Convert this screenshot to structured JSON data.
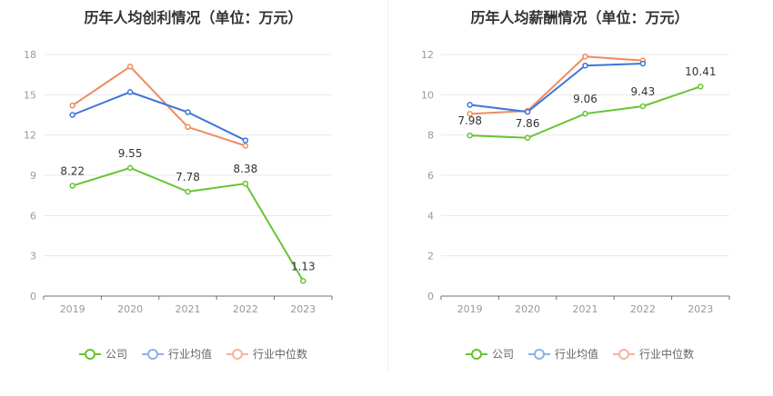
{
  "chart_data": [
    {
      "type": "line",
      "title": "历年人均创利情况（单位：万元）",
      "categories": [
        "2019",
        "2020",
        "2021",
        "2022",
        "2023"
      ],
      "yticks": [
        0,
        3,
        6,
        9,
        12,
        15,
        18
      ],
      "ylim": [
        0,
        18
      ],
      "series": [
        {
          "name": "公司",
          "color": "#66c430",
          "values": [
            8.22,
            9.55,
            7.78,
            8.38,
            1.13
          ],
          "labels": [
            "8.22",
            "9.55",
            "7.78",
            "8.38",
            "1.13"
          ]
        },
        {
          "name": "行业均值",
          "color": "#3d75d9",
          "values": [
            13.5,
            15.2,
            13.7,
            11.6,
            null
          ]
        },
        {
          "name": "行业中位数",
          "color": "#f08a5d",
          "values": [
            14.2,
            17.1,
            12.6,
            11.2,
            null
          ]
        }
      ],
      "grid": true,
      "legend": "bottom"
    },
    {
      "type": "line",
      "title": "历年人均薪酬情况（单位：万元）",
      "categories": [
        "2019",
        "2020",
        "2021",
        "2022",
        "2023"
      ],
      "yticks": [
        0,
        2,
        4,
        6,
        8,
        10,
        12
      ],
      "ylim": [
        0,
        12
      ],
      "series": [
        {
          "name": "公司",
          "color": "#66c430",
          "values": [
            7.98,
            7.86,
            9.06,
            9.43,
            10.41
          ],
          "labels": [
            "7.98",
            "7.86",
            "9.06",
            "9.43",
            "10.41"
          ]
        },
        {
          "name": "行业均值",
          "color": "#3d75d9",
          "values": [
            9.5,
            9.15,
            11.45,
            11.55,
            null
          ]
        },
        {
          "name": "行业中位数",
          "color": "#f08a5d",
          "values": [
            9.05,
            9.2,
            11.9,
            11.7,
            null
          ]
        }
      ],
      "grid": true,
      "legend": "bottom"
    }
  ],
  "legend": {
    "items": [
      {
        "label": "公司",
        "color": "#66c430"
      },
      {
        "label": "行业均值",
        "color": "#8fb0ea"
      },
      {
        "label": "行业中位数",
        "color": "#f4b39a"
      }
    ]
  }
}
